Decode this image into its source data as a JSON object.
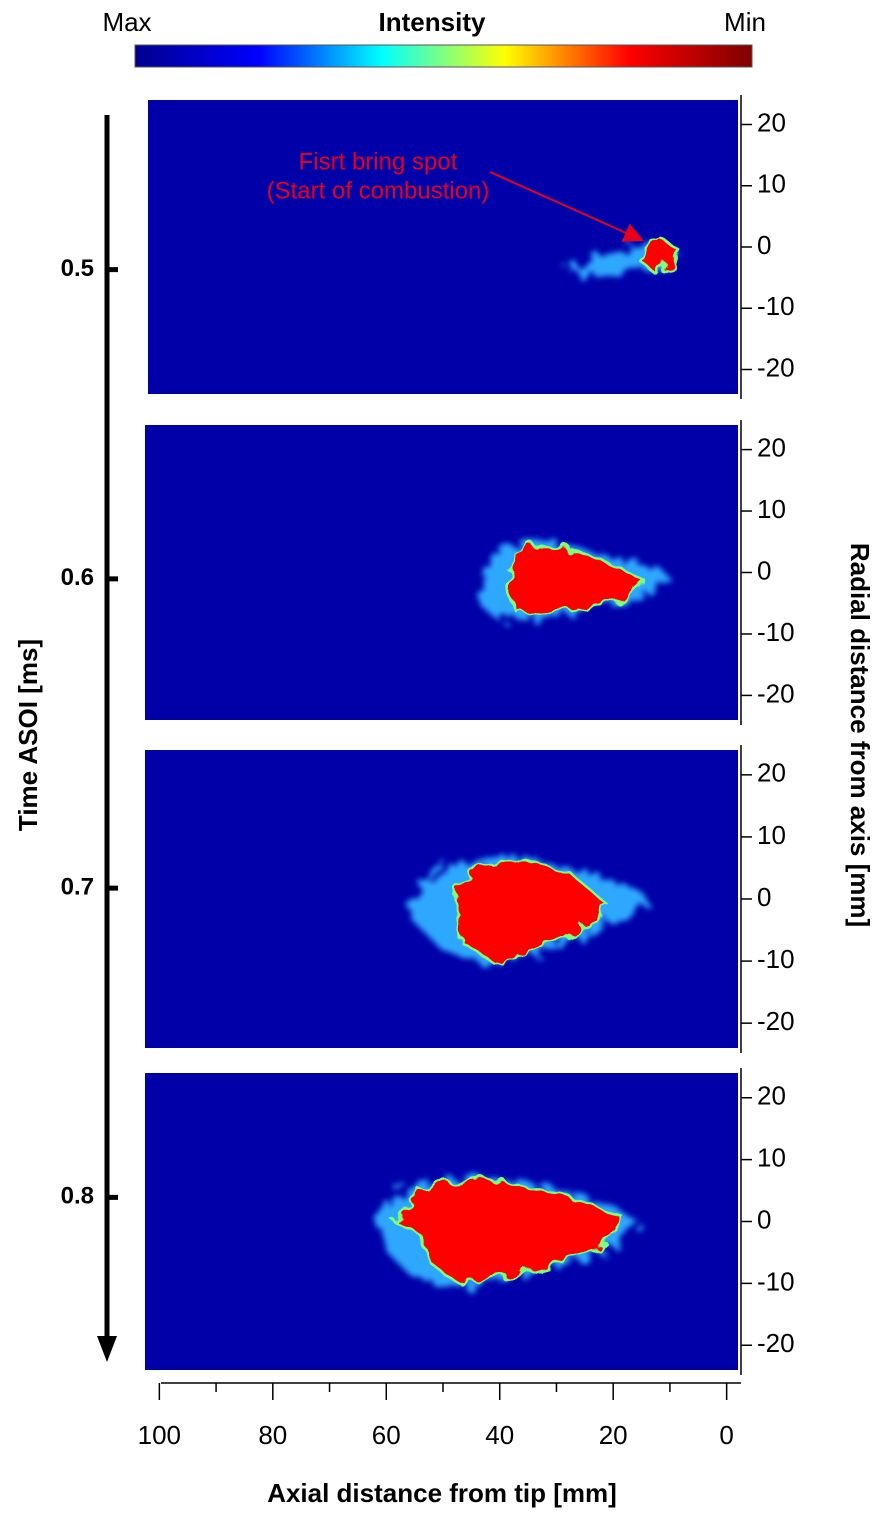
{
  "chart_data": {
    "type": "image-panels",
    "colorbar": {
      "left_label": "Max",
      "title": "Intensity",
      "right_label": "Min",
      "colors": [
        "#00008f",
        "#0000ff",
        "#00ffff",
        "#ffff00",
        "#ff0000",
        "#800000"
      ]
    },
    "panel_color": "#0000a8",
    "time_axis": {
      "label": "Time ASOI [ms]",
      "lim": [
        0.45,
        0.85
      ],
      "ticks": [
        0.5,
        0.6,
        0.7,
        0.8
      ]
    },
    "xlabel": "Axial distance from tip [mm]",
    "xlim": [
      102,
      -2
    ],
    "xticks": [
      100,
      80,
      60,
      40,
      20,
      0
    ],
    "xminorticks": [
      90,
      70,
      50,
      30,
      10
    ],
    "ylabel": "Radial distance from axis [mm]",
    "ylim": [
      -24,
      24
    ],
    "yticks": [
      20,
      10,
      0,
      -10,
      -20
    ],
    "annotation": {
      "lines": [
        "Fisrt bring spot",
        "(Start of combustion)"
      ],
      "color": "#e8001a"
    }
  }
}
